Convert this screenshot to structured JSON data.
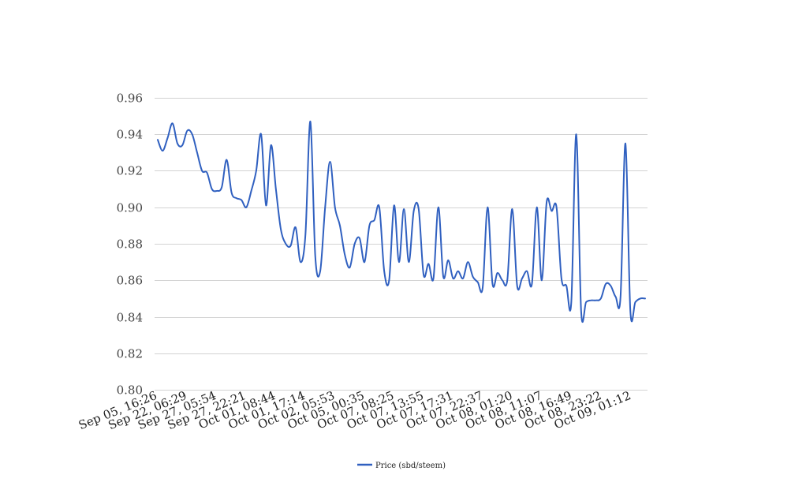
{
  "chart_data": {
    "type": "line",
    "title": "",
    "xlabel": "",
    "ylabel": "",
    "ylim": [
      0.8,
      0.96
    ],
    "y_ticks": [
      "0.80",
      "0.82",
      "0.84",
      "0.86",
      "0.88",
      "0.90",
      "0.92",
      "0.94",
      "0.96"
    ],
    "x_tick_labels": [
      "Sep 05, 16:26",
      "Sep 22, 06:29",
      "Sep 27, 05:54",
      "Sep 27, 22:21",
      "Oct 01, 08:44",
      "Oct 01, 17:14",
      "Oct 02, 05:53",
      "Oct 05, 00:35",
      "Oct 07, 08:25",
      "Oct 07, 13:55",
      "Oct 07, 17:31",
      "Oct 07, 22:37",
      "Oct 08, 01:20",
      "Oct 08, 11:07",
      "Oct 08, 16:49",
      "Oct 08, 23:22",
      "Oct 09, 01:12"
    ],
    "grid": true,
    "legend_position": "bottom",
    "series": [
      {
        "name": "Price (sbd/steem)",
        "color": "#3060c0",
        "values": [
          0.937,
          0.931,
          0.938,
          0.946,
          0.935,
          0.934,
          0.942,
          0.94,
          0.93,
          0.92,
          0.919,
          0.91,
          0.909,
          0.911,
          0.926,
          0.908,
          0.905,
          0.904,
          0.9,
          0.909,
          0.92,
          0.94,
          0.901,
          0.934,
          0.91,
          0.888,
          0.88,
          0.879,
          0.889,
          0.87,
          0.885,
          0.947,
          0.873,
          0.865,
          0.9,
          0.925,
          0.9,
          0.89,
          0.874,
          0.867,
          0.88,
          0.883,
          0.87,
          0.89,
          0.893,
          0.9,
          0.865,
          0.86,
          0.901,
          0.87,
          0.899,
          0.87,
          0.898,
          0.899,
          0.863,
          0.869,
          0.861,
          0.9,
          0.862,
          0.871,
          0.861,
          0.865,
          0.861,
          0.87,
          0.862,
          0.859,
          0.856,
          0.9,
          0.858,
          0.864,
          0.86,
          0.86,
          0.899,
          0.857,
          0.861,
          0.865,
          0.858,
          0.9,
          0.86,
          0.903,
          0.898,
          0.9,
          0.861,
          0.857,
          0.848,
          0.94,
          0.843,
          0.848,
          0.849,
          0.849,
          0.85,
          0.858,
          0.857,
          0.851,
          0.851,
          0.935,
          0.843,
          0.848,
          0.85,
          0.85
        ]
      }
    ]
  }
}
